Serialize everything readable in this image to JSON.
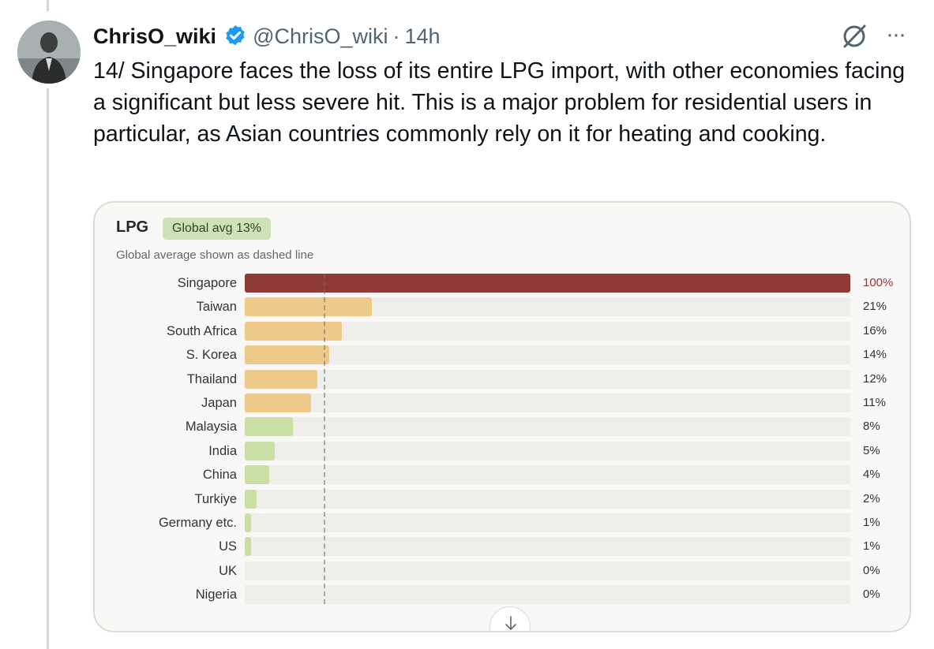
{
  "tweet": {
    "author_name": "ChrisO_wiki",
    "handle": "@ChrisO_wiki",
    "separator": "·",
    "time": "14h",
    "text": "14/ Singapore faces the loss of its entire LPG import, with other economies facing a significant but less severe hit. This is a major problem for residential users in particular, as Asian countries commonly rely on it for heating and cooking.",
    "more_label": "···",
    "icons": {
      "verified": "verified-badge-icon",
      "grok": "grok-icon",
      "more": "more-icon"
    }
  },
  "colors": {
    "verified": "#1d9bf0",
    "highlight_bar": "#8e3a36",
    "high_bar": "#edc98a",
    "low_bar": "#c9dfa6",
    "track": "#efeeeb",
    "badge_bg": "#cfe1b6"
  },
  "card": {
    "title": "LPG",
    "badge": "Global avg 13%",
    "subtitle": "Global average shown as dashed line"
  },
  "chart_data": {
    "type": "bar",
    "orientation": "horizontal",
    "title": "LPG",
    "subtitle": "Global average shown as dashed line",
    "unit": "%",
    "xlim": [
      0,
      100
    ],
    "reference_line": {
      "label": "Global avg 13%",
      "value": 13,
      "style": "dashed"
    },
    "categories": [
      "Singapore",
      "Taiwan",
      "South Africa",
      "S. Korea",
      "Thailand",
      "Japan",
      "Malaysia",
      "India",
      "China",
      "Turkiye",
      "Germany etc.",
      "US",
      "UK",
      "Nigeria"
    ],
    "values": [
      100,
      21,
      16,
      14,
      12,
      11,
      8,
      5,
      4,
      2,
      1,
      1,
      0,
      0
    ],
    "value_labels": [
      "100%",
      "21%",
      "16%",
      "14%",
      "12%",
      "11%",
      "8%",
      "5%",
      "4%",
      "2%",
      "1%",
      "1%",
      "0%",
      "0%"
    ],
    "bar_colors": [
      "#8e3a36",
      "#edc98a",
      "#edc98a",
      "#edc98a",
      "#edc98a",
      "#edc98a",
      "#c9dfa6",
      "#c9dfa6",
      "#c9dfa6",
      "#c9dfa6",
      "#c9dfa6",
      "#c9dfa6",
      "#c9dfa6",
      "#c9dfa6"
    ]
  },
  "scroll_button": {
    "icon": "arrow-down-icon"
  }
}
